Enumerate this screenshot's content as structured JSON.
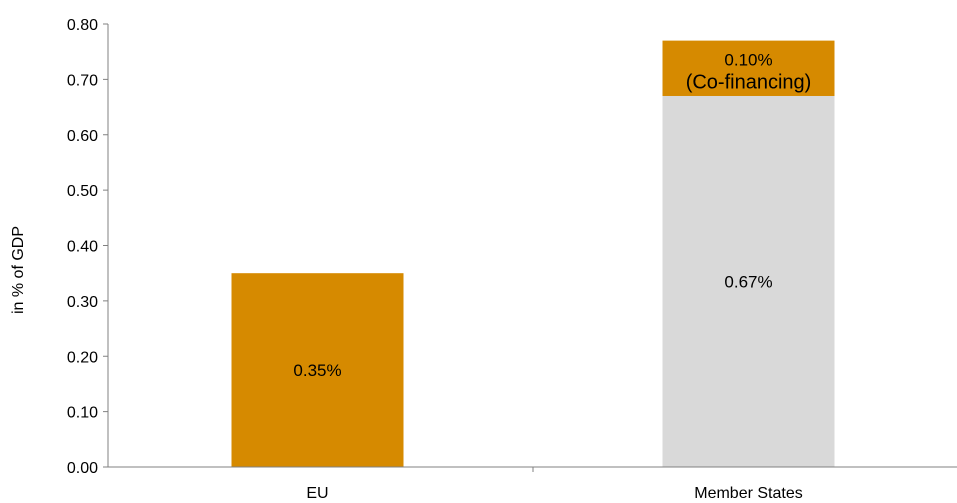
{
  "chart_data": {
    "type": "bar",
    "stacked": true,
    "categories": [
      "EU",
      "Member States"
    ],
    "series": [
      {
        "values": [
          0.35,
          0.67
        ],
        "colors": [
          "#D68A00",
          "#D9D9D9"
        ],
        "labels": [
          "0.35%",
          "0.67%"
        ]
      },
      {
        "values": [
          0,
          0.1
        ],
        "colors": [
          "#D68A00",
          "#D68A00"
        ],
        "labels": [
          "",
          "0.10%"
        ],
        "sublabels": [
          "",
          "(Co-financing)"
        ]
      }
    ],
    "ylabel": "in % of GDP",
    "xlabel": "",
    "ylim": [
      0,
      0.8
    ],
    "yticks": [
      "0.00",
      "0.10",
      "0.20",
      "0.30",
      "0.40",
      "0.50",
      "0.60",
      "0.70",
      "0.80"
    ],
    "grid": false,
    "legend": "none"
  }
}
